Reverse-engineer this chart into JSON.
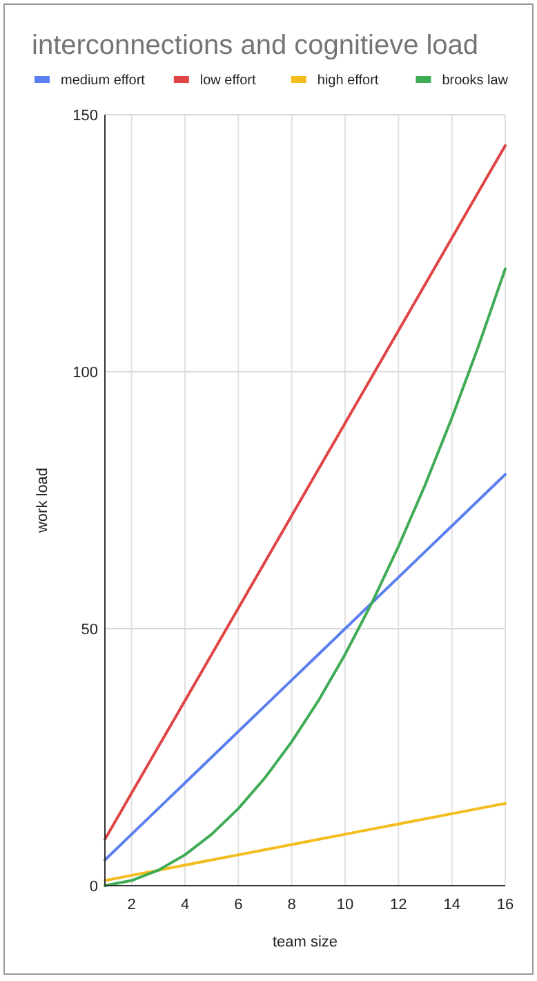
{
  "chart_data": {
    "type": "line",
    "title": "interconnections and cognitieve load",
    "xlabel": "team size",
    "ylabel": "work load",
    "x": [
      1,
      2,
      3,
      4,
      5,
      6,
      7,
      8,
      9,
      10,
      11,
      12,
      13,
      14,
      15,
      16
    ],
    "series": [
      {
        "name": "medium effort",
        "color": "#5b7ff0",
        "values": [
          5,
          10,
          15,
          20,
          25,
          30,
          35,
          40,
          45,
          50,
          55,
          60,
          65,
          70,
          75,
          80
        ]
      },
      {
        "name": "low effort",
        "color": "#e04444",
        "values": [
          9,
          18,
          27,
          36,
          45,
          54,
          63,
          72,
          81,
          90,
          99,
          108,
          117,
          126,
          135,
          144
        ]
      },
      {
        "name": "high effort",
        "color": "#f4bc1c",
        "values": [
          1,
          2,
          3,
          4,
          5,
          6,
          7,
          8,
          9,
          10,
          11,
          12,
          13,
          14,
          15,
          16
        ]
      },
      {
        "name": "brooks law",
        "color": "#3fac55",
        "values": [
          0,
          1,
          3,
          6,
          10,
          15,
          21,
          28,
          36,
          45,
          55,
          66,
          78,
          91,
          105,
          120
        ]
      }
    ],
    "xlim": [
      1,
      16
    ],
    "xticks": [
      2,
      4,
      6,
      8,
      10,
      12,
      14,
      16
    ],
    "ylim": [
      0,
      150
    ],
    "yticks": [
      0,
      50,
      100,
      150
    ],
    "grid": true,
    "legend": "top",
    "marker": "none",
    "line_style": "solid"
  }
}
